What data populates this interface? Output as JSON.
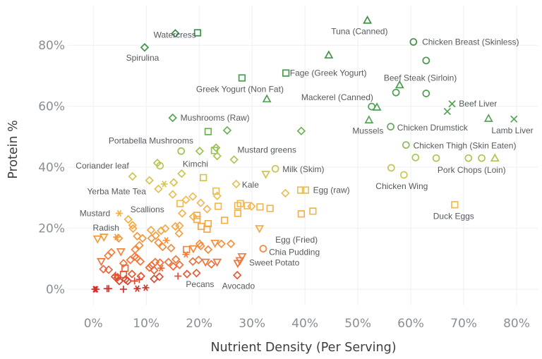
{
  "chart_data": {
    "type": "scatter",
    "title": "",
    "xlabel": "Nutrient Density (Per Serving)",
    "ylabel": "Protein %",
    "xlim": [
      -4.7,
      84
    ],
    "ylim": [
      -5.3,
      93
    ],
    "x_ticks": [
      "0%",
      "10%",
      "20%",
      "30%",
      "40%",
      "50%",
      "60%",
      "70%",
      "80%"
    ],
    "x_tick_values": [
      0,
      10,
      20,
      30,
      40,
      50,
      60,
      70,
      80
    ],
    "y_ticks": [
      "0%",
      "20%",
      "40%",
      "60%",
      "80%"
    ],
    "y_tick_values": [
      0,
      20,
      40,
      60,
      80
    ],
    "grid": true,
    "legend": "none",
    "color_scale": {
      "encoding": "protein",
      "low": "#d3302c",
      "mid": "#f5a742",
      "high": "#3d8f45"
    },
    "shapes": {
      "d": "diamond",
      "s": "square",
      "c": "circle",
      "tu": "triangle-up",
      "td": "triangle-down",
      "x": "cross",
      "a": "asterisk",
      "p": "plus"
    },
    "points": [
      [
        15.5,
        83.9,
        "d"
      ],
      [
        19.7,
        84.1,
        "s"
      ],
      [
        9.7,
        79.3,
        "d"
      ],
      [
        51.8,
        88.2,
        "tu"
      ],
      [
        60.5,
        81.1,
        "c"
      ],
      [
        62.9,
        75.0,
        "c"
      ],
      [
        44.5,
        76.8,
        "tu"
      ],
      [
        36.4,
        70.9,
        "s"
      ],
      [
        28.1,
        69.3,
        "s"
      ],
      [
        32.8,
        62.4,
        "tu"
      ],
      [
        52.6,
        59.9,
        "c"
      ],
      [
        53.6,
        59.7,
        "tu"
      ],
      [
        57.9,
        67.0,
        "tu"
      ],
      [
        57.2,
        64.5,
        "c"
      ],
      [
        62.9,
        64.2,
        "c"
      ],
      [
        67.8,
        60.8,
        "x"
      ],
      [
        66.9,
        58.3,
        "x"
      ],
      [
        74.7,
        56.0,
        "tu"
      ],
      [
        79.5,
        55.8,
        "x"
      ],
      [
        52.1,
        55.5,
        "tu"
      ],
      [
        56.2,
        53.3,
        "c"
      ],
      [
        59.1,
        47.3,
        "c"
      ],
      [
        60.9,
        43.2,
        "c"
      ],
      [
        64.8,
        43.0,
        "c"
      ],
      [
        70.9,
        43.0,
        "c"
      ],
      [
        73.4,
        43.0,
        "c"
      ],
      [
        75.9,
        43.0,
        "tu"
      ],
      [
        56.3,
        39.8,
        "c"
      ],
      [
        58.7,
        37.5,
        "c"
      ],
      [
        68.3,
        27.7,
        "s"
      ],
      [
        15.0,
        56.2,
        "d"
      ],
      [
        39.3,
        51.9,
        "d"
      ],
      [
        34.4,
        39.5,
        "c"
      ],
      [
        32.6,
        37.7,
        "td"
      ],
      [
        39.2,
        32.5,
        "s"
      ],
      [
        40.1,
        32.5,
        "s"
      ],
      [
        36.3,
        31.5,
        "d"
      ],
      [
        4.9,
        24.9,
        "a"
      ],
      [
        32.1,
        13.3,
        "c"
      ],
      [
        29.1,
        27.4,
        "s"
      ],
      [
        31.5,
        27.0,
        "s"
      ],
      [
        33.4,
        26.5,
        "s"
      ],
      [
        39.3,
        24.7,
        "s"
      ],
      [
        41.5,
        25.6,
        "s"
      ],
      [
        21.7,
        51.7,
        "s"
      ],
      [
        25.3,
        52.1,
        "d"
      ],
      [
        16.6,
        45.3,
        "c"
      ],
      [
        20.1,
        45.3,
        "d"
      ],
      [
        22.9,
        45.5,
        "s"
      ],
      [
        23.2,
        46.4,
        "d"
      ],
      [
        23.4,
        43.7,
        "d"
      ],
      [
        26.6,
        42.5,
        "d"
      ],
      [
        12.1,
        41.4,
        "d"
      ],
      [
        12.6,
        40.5,
        "c"
      ],
      [
        7.4,
        37.0,
        "d"
      ],
      [
        10.6,
        35.7,
        "d"
      ],
      [
        13.4,
        34.5,
        "a"
      ],
      [
        12.3,
        32.9,
        "d"
      ],
      [
        15.2,
        35.0,
        "d"
      ],
      [
        16.7,
        37.9,
        "d"
      ],
      [
        20.8,
        36.6,
        "s"
      ],
      [
        27.0,
        34.5,
        "d"
      ],
      [
        23.2,
        32.2,
        "s"
      ],
      [
        23.4,
        30.6,
        "d"
      ],
      [
        15.0,
        31.1,
        "d"
      ],
      [
        17.5,
        29.3,
        "d"
      ],
      [
        18.8,
        30.4,
        "d"
      ],
      [
        20.3,
        28.3,
        "d"
      ],
      [
        16.4,
        28.1,
        "s"
      ],
      [
        21.5,
        26.3,
        "d"
      ],
      [
        23.6,
        27.2,
        "s"
      ],
      [
        27.3,
        27.4,
        "s"
      ],
      [
        27.8,
        28.1,
        "s"
      ],
      [
        29.9,
        27.2,
        "d"
      ],
      [
        27.3,
        24.9,
        "s"
      ],
      [
        16.8,
        24.9,
        "d"
      ],
      [
        18.9,
        23.8,
        "d"
      ],
      [
        19.6,
        24.2,
        "s"
      ],
      [
        19.6,
        22.9,
        "s"
      ],
      [
        20.4,
        20.6,
        "s"
      ],
      [
        21.5,
        19.7,
        "s"
      ],
      [
        21.7,
        21.5,
        "s"
      ],
      [
        24.8,
        22.6,
        "s"
      ],
      [
        6.6,
        22.9,
        "d"
      ],
      [
        7.4,
        21.0,
        "d"
      ],
      [
        7.5,
        19.9,
        "d"
      ],
      [
        31.4,
        19.9,
        "td"
      ],
      [
        15.5,
        20.6,
        "d"
      ],
      [
        16.3,
        20.8,
        "d"
      ],
      [
        16.2,
        18.3,
        "d"
      ],
      [
        13.6,
        19.9,
        "d"
      ],
      [
        12.8,
        19.2,
        "d"
      ],
      [
        11.8,
        17.6,
        "d"
      ],
      [
        10.9,
        19.4,
        "d"
      ],
      [
        11.0,
        16.7,
        "d"
      ],
      [
        8.3,
        17.4,
        "d"
      ],
      [
        9.3,
        16.7,
        "d"
      ],
      [
        8.7,
        14.4,
        "d"
      ],
      [
        13.8,
        16.0,
        "a"
      ],
      [
        12.3,
        15.3,
        "d"
      ],
      [
        13.1,
        13.9,
        "d"
      ],
      [
        14.7,
        13.5,
        "d"
      ],
      [
        0.8,
        16.5,
        "td"
      ],
      [
        2.0,
        17.1,
        "td"
      ],
      [
        4.4,
        17.1,
        "a"
      ],
      [
        4.8,
        16.7,
        "d"
      ],
      [
        7.9,
        13.0,
        "d"
      ],
      [
        3.4,
        12.1,
        "d"
      ],
      [
        2.8,
        11.0,
        "d"
      ],
      [
        5.2,
        12.3,
        "td"
      ],
      [
        7.8,
        10.7,
        "d"
      ],
      [
        8.2,
        10.3,
        "d"
      ],
      [
        8.9,
        9.1,
        "d"
      ],
      [
        1.5,
        9.1,
        "td"
      ],
      [
        5.7,
        8.5,
        "d"
      ],
      [
        7.0,
        9.6,
        "d"
      ],
      [
        17.6,
        13.0,
        "s"
      ],
      [
        18.9,
        13.3,
        "td"
      ],
      [
        20.1,
        14.9,
        "d"
      ],
      [
        20.3,
        14.2,
        "d"
      ],
      [
        21.7,
        13.0,
        "d"
      ],
      [
        23.0,
        15.1,
        "td"
      ],
      [
        24.2,
        14.9,
        "d"
      ],
      [
        26.0,
        14.9,
        "d"
      ],
      [
        17.5,
        11.4,
        "a"
      ],
      [
        15.6,
        9.8,
        "d"
      ],
      [
        14.2,
        8.9,
        "d"
      ],
      [
        11.7,
        8.9,
        "d"
      ],
      [
        12.6,
        8.7,
        "d"
      ],
      [
        18.8,
        9.1,
        "d"
      ],
      [
        19.9,
        9.6,
        "d"
      ],
      [
        21.2,
        8.9,
        "td"
      ],
      [
        22.3,
        8.2,
        "d"
      ],
      [
        23.4,
        8.9,
        "td"
      ],
      [
        16.3,
        8.0,
        "d"
      ],
      [
        15.1,
        7.5,
        "d"
      ],
      [
        11.0,
        7.8,
        "d"
      ],
      [
        10.6,
        7.1,
        "d"
      ],
      [
        12.8,
        6.9,
        "a"
      ],
      [
        11.5,
        6.2,
        "d"
      ],
      [
        1.9,
        6.6,
        "d"
      ],
      [
        2.9,
        6.4,
        "d"
      ],
      [
        6.0,
        6.9,
        "s"
      ],
      [
        5.7,
        4.8,
        "s"
      ],
      [
        4.1,
        4.1,
        "d"
      ],
      [
        4.6,
        3.9,
        "d"
      ],
      [
        7.3,
        5.0,
        "d"
      ],
      [
        6.1,
        3.2,
        "d"
      ],
      [
        6.5,
        2.7,
        "d"
      ],
      [
        4.9,
        2.7,
        "d"
      ],
      [
        4.2,
        4.6,
        "p"
      ],
      [
        7.8,
        2.7,
        "p"
      ],
      [
        8.7,
        3.2,
        "p"
      ],
      [
        9.0,
        4.3,
        "d"
      ],
      [
        11.5,
        3.4,
        "d"
      ],
      [
        12.5,
        4.1,
        "d"
      ],
      [
        16.0,
        4.3,
        "p"
      ],
      [
        17.7,
        5.0,
        "d"
      ],
      [
        19.5,
        5.3,
        "d"
      ],
      [
        27.2,
        4.6,
        "d"
      ],
      [
        28.1,
        10.7,
        "td"
      ],
      [
        27.7,
        9.4,
        "td"
      ],
      [
        27.3,
        8.5,
        "td"
      ],
      [
        0.3,
        0,
        "a"
      ],
      [
        0.5,
        0,
        "a"
      ],
      [
        2.6,
        0.2,
        "p"
      ],
      [
        2.9,
        0.2,
        "p"
      ],
      [
        5.7,
        0,
        "p"
      ],
      [
        8.3,
        0.2,
        "a"
      ],
      [
        9.9,
        0.5,
        "a"
      ]
    ],
    "annotations": [
      {
        "text": "Watercress",
        "x": 15.4,
        "y": 83.4
      },
      {
        "text": "Spirulina",
        "x": 9.3,
        "y": 75.9
      },
      {
        "text": "Tuna (Canned)",
        "x": 50.3,
        "y": 84.6
      },
      {
        "text": "Chicken Breast (Skinless)",
        "x": 71.3,
        "y": 81.1
      },
      {
        "text": "Beef Steak (Sirloin)",
        "x": 61.8,
        "y": 69.3
      },
      {
        "text": "Fage (Greek Yogurt)",
        "x": 44.4,
        "y": 70.9
      },
      {
        "text": "Greek Yogurt (Non Fat)",
        "x": 27.7,
        "y": 65.6
      },
      {
        "text": "Mackerel (Canned)",
        "x": 46.1,
        "y": 62.9
      },
      {
        "text": "Beef Liver",
        "x": 72.7,
        "y": 60.8
      },
      {
        "text": "Lamb Liver",
        "x": 79.2,
        "y": 52.1
      },
      {
        "text": "Mussels",
        "x": 51.9,
        "y": 51.9
      },
      {
        "text": "Chicken Drumstick",
        "x": 64.1,
        "y": 53.0
      },
      {
        "text": "Chicken Thigh (Skin Eaten)",
        "x": 70.2,
        "y": 47.1
      },
      {
        "text": "Pork Chops (Loin)",
        "x": 71.5,
        "y": 39.1
      },
      {
        "text": "Chicken Wing",
        "x": 58.3,
        "y": 33.8
      },
      {
        "text": "Duck Eggs",
        "x": 68.1,
        "y": 24.0
      },
      {
        "text": "Mushrooms (Raw)",
        "x": 23.0,
        "y": 56.2
      },
      {
        "text": "Portabella Mushrooms",
        "x": 10.9,
        "y": 48.7
      },
      {
        "text": "Mustard greens",
        "x": 32.8,
        "y": 45.7
      },
      {
        "text": "Coriander leaf",
        "x": 1.7,
        "y": 40.5
      },
      {
        "text": "Kimchi",
        "x": 19.3,
        "y": 41.1
      },
      {
        "text": "Milk (Skim)",
        "x": 39.7,
        "y": 39.3
      },
      {
        "text": "Kale",
        "x": 29.7,
        "y": 34.3
      },
      {
        "text": "Egg (raw)",
        "x": 45.0,
        "y": 32.5
      },
      {
        "text": "Yerba Mate Tea",
        "x": 4.4,
        "y": 32.0
      },
      {
        "text": "Mustard",
        "x": 0.3,
        "y": 24.9
      },
      {
        "text": "Scallions",
        "x": 10.2,
        "y": 26.1
      },
      {
        "text": "Radish",
        "x": 2.4,
        "y": 20.1
      },
      {
        "text": "Egg (Fried)",
        "x": 38.4,
        "y": 15.1
      },
      {
        "text": "Chia Pudding",
        "x": 38.0,
        "y": 13.3
      },
      {
        "text": "Sweet Potato",
        "x": 34.2,
        "y": 8.7
      },
      {
        "text": "Pecans",
        "x": 20.7,
        "y": 1.6
      },
      {
        "text": "Avocado",
        "x": 26.9,
        "y": 1.1
      }
    ]
  }
}
